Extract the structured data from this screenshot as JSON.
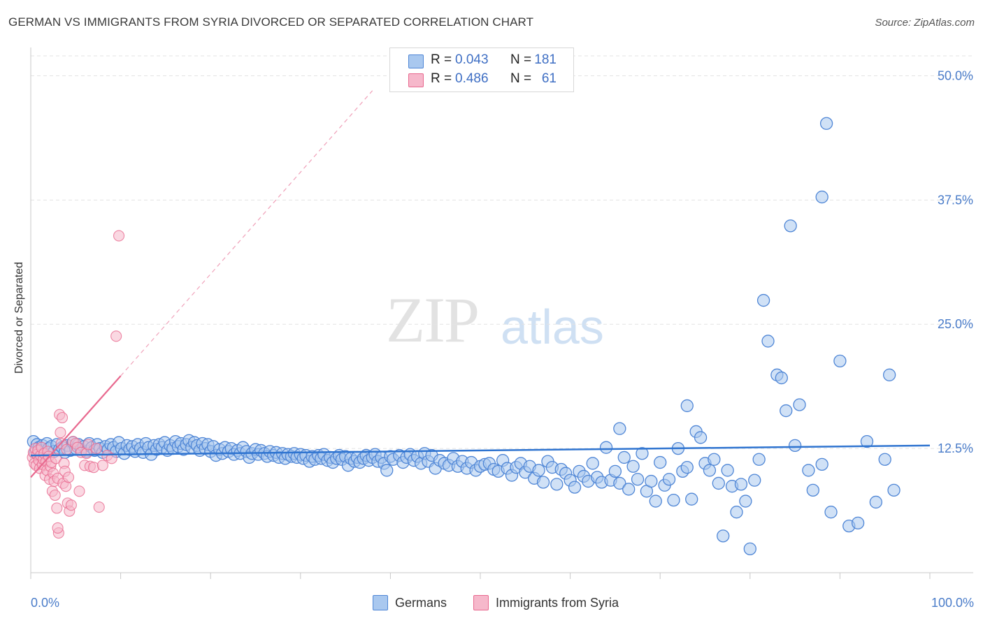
{
  "title": "GERMAN VS IMMIGRANTS FROM SYRIA DIVORCED OR SEPARATED CORRELATION CHART",
  "source": "Source: ZipAtlas.com",
  "watermark": {
    "part1": "ZIP",
    "part2": "atlas"
  },
  "legend": {
    "rows": [
      {
        "r_label": "R =",
        "r_value": "0.043",
        "n_label": "N =",
        "n_value": "181",
        "color": "#a9c8ef"
      },
      {
        "r_label": "R =",
        "r_value": "0.486",
        "n_label": "N =",
        "n_value": "61",
        "color": "#f6b8cb"
      }
    ]
  },
  "bottom_legend": [
    {
      "label": "Germans",
      "color": "#a9c8ef"
    },
    {
      "label": "Immigrants from Syria",
      "color": "#f6b8cb"
    }
  ],
  "chart_data": {
    "type": "scatter",
    "xlabel": "",
    "ylabel": "Divorced or Separated",
    "xlim": [
      0,
      100
    ],
    "ylim": [
      0,
      52
    ],
    "x_tick_labels": [
      "0.0%",
      "100.0%"
    ],
    "y_ticks": [
      12.5,
      25.0,
      37.5,
      50.0
    ],
    "y_tick_labels": [
      "12.5%",
      "25.0%",
      "37.5%",
      "50.0%"
    ],
    "grid": "horizontal dashed",
    "series": [
      {
        "name": "Germans",
        "color": "#4f86d6",
        "fill": "#a9c8ef",
        "trend": {
          "x": [
            0,
            100
          ],
          "y": [
            11.8,
            12.8
          ],
          "style": "solid"
        },
        "points": [
          [
            0.3,
            13.2
          ],
          [
            0.5,
            12.1
          ],
          [
            0.7,
            12.9
          ],
          [
            0.9,
            12.6
          ],
          [
            1.1,
            12.3
          ],
          [
            1.3,
            12.8
          ],
          [
            1.5,
            12.0
          ],
          [
            1.8,
            13.0
          ],
          [
            2.0,
            12.5
          ],
          [
            2.3,
            12.7
          ],
          [
            2.6,
            12.2
          ],
          [
            2.9,
            12.9
          ],
          [
            3.2,
            12.4
          ],
          [
            3.5,
            12.6
          ],
          [
            3.8,
            12.1
          ],
          [
            4.1,
            12.8
          ],
          [
            4.4,
            12.3
          ],
          [
            4.7,
            13.1
          ],
          [
            5.0,
            12.5
          ],
          [
            5.3,
            12.9
          ],
          [
            5.6,
            12.4
          ],
          [
            5.9,
            12.7
          ],
          [
            6.2,
            12.2
          ],
          [
            6.5,
            13.0
          ],
          [
            6.8,
            12.6
          ],
          [
            7.1,
            12.3
          ],
          [
            7.4,
            12.9
          ],
          [
            7.7,
            12.5
          ],
          [
            8.0,
            12.1
          ],
          [
            8.3,
            12.7
          ],
          [
            8.6,
            12.4
          ],
          [
            8.9,
            12.9
          ],
          [
            9.2,
            12.6
          ],
          [
            9.5,
            12.2
          ],
          [
            9.8,
            13.1
          ],
          [
            10.1,
            12.5
          ],
          [
            10.4,
            12.0
          ],
          [
            10.7,
            12.8
          ],
          [
            11.0,
            12.4
          ],
          [
            11.3,
            12.7
          ],
          [
            11.6,
            12.2
          ],
          [
            11.9,
            12.9
          ],
          [
            12.2,
            12.5
          ],
          [
            12.5,
            12.1
          ],
          [
            12.8,
            13.0
          ],
          [
            13.1,
            12.6
          ],
          [
            13.4,
            11.9
          ],
          [
            13.7,
            12.8
          ],
          [
            14.0,
            12.4
          ],
          [
            14.3,
            12.9
          ],
          [
            14.6,
            12.6
          ],
          [
            14.9,
            13.1
          ],
          [
            15.2,
            12.3
          ],
          [
            15.5,
            12.8
          ],
          [
            15.8,
            12.5
          ],
          [
            16.1,
            13.2
          ],
          [
            16.4,
            12.7
          ],
          [
            16.7,
            13.0
          ],
          [
            17.0,
            12.4
          ],
          [
            17.3,
            12.9
          ],
          [
            17.6,
            13.3
          ],
          [
            17.9,
            12.6
          ],
          [
            18.2,
            13.1
          ],
          [
            18.5,
            12.8
          ],
          [
            18.8,
            12.3
          ],
          [
            19.1,
            13.0
          ],
          [
            19.4,
            12.5
          ],
          [
            19.7,
            12.9
          ],
          [
            20.0,
            12.2
          ],
          [
            20.3,
            12.7
          ],
          [
            20.6,
            11.8
          ],
          [
            21.0,
            12.4
          ],
          [
            21.3,
            12.0
          ],
          [
            21.6,
            12.6
          ],
          [
            22.0,
            12.2
          ],
          [
            22.3,
            12.5
          ],
          [
            22.6,
            11.9
          ],
          [
            23.0,
            12.3
          ],
          [
            23.3,
            12.0
          ],
          [
            23.6,
            12.6
          ],
          [
            24.0,
            12.2
          ],
          [
            24.3,
            11.6
          ],
          [
            24.6,
            12.0
          ],
          [
            25.0,
            12.4
          ],
          [
            25.3,
            11.9
          ],
          [
            25.6,
            12.3
          ],
          [
            26.0,
            12.0
          ],
          [
            26.3,
            11.7
          ],
          [
            26.6,
            12.2
          ],
          [
            27.0,
            11.8
          ],
          [
            27.3,
            12.1
          ],
          [
            27.6,
            11.6
          ],
          [
            28.0,
            12.0
          ],
          [
            28.3,
            11.5
          ],
          [
            28.6,
            11.9
          ],
          [
            29.0,
            11.7
          ],
          [
            29.3,
            12.0
          ],
          [
            29.6,
            11.6
          ],
          [
            30.0,
            11.9
          ],
          [
            30.3,
            11.5
          ],
          [
            30.6,
            11.8
          ],
          [
            31.0,
            11.2
          ],
          [
            31.3,
            11.7
          ],
          [
            31.6,
            11.4
          ],
          [
            32.0,
            11.8
          ],
          [
            32.3,
            11.5
          ],
          [
            32.6,
            11.9
          ],
          [
            33.0,
            11.3
          ],
          [
            33.3,
            11.6
          ],
          [
            33.6,
            11.1
          ],
          [
            34.0,
            11.5
          ],
          [
            34.3,
            11.8
          ],
          [
            34.6,
            11.4
          ],
          [
            35.0,
            11.7
          ],
          [
            35.3,
            10.8
          ],
          [
            35.6,
            11.5
          ],
          [
            36.0,
            11.2
          ],
          [
            36.3,
            11.6
          ],
          [
            36.6,
            11.1
          ],
          [
            37.0,
            11.5
          ],
          [
            37.3,
            11.8
          ],
          [
            37.6,
            11.3
          ],
          [
            38.0,
            11.6
          ],
          [
            38.3,
            11.9
          ],
          [
            38.6,
            11.2
          ],
          [
            39.0,
            11.6
          ],
          [
            39.3,
            11.0
          ],
          [
            39.6,
            10.3
          ],
          [
            40.0,
            11.7
          ],
          [
            40.3,
            11.4
          ],
          [
            41.0,
            11.8
          ],
          [
            41.4,
            11.1
          ],
          [
            41.8,
            11.6
          ],
          [
            42.2,
            11.9
          ],
          [
            42.6,
            11.3
          ],
          [
            43.0,
            11.7
          ],
          [
            43.4,
            11.0
          ],
          [
            43.8,
            12.0
          ],
          [
            44.2,
            11.2
          ],
          [
            44.6,
            11.8
          ],
          [
            45.0,
            10.5
          ],
          [
            45.5,
            11.3
          ],
          [
            46.0,
            11.0
          ],
          [
            46.5,
            10.8
          ],
          [
            47.0,
            11.5
          ],
          [
            47.5,
            10.7
          ],
          [
            48.0,
            11.2
          ],
          [
            48.5,
            10.5
          ],
          [
            49.0,
            11.1
          ],
          [
            49.5,
            10.3
          ],
          [
            50.0,
            10.7
          ],
          [
            50.5,
            10.9
          ],
          [
            51.0,
            11.0
          ],
          [
            51.5,
            10.4
          ],
          [
            52.0,
            10.2
          ],
          [
            52.5,
            11.3
          ],
          [
            53.0,
            10.5
          ],
          [
            53.5,
            9.8
          ],
          [
            54.0,
            10.6
          ],
          [
            54.5,
            11.0
          ],
          [
            55.0,
            10.1
          ],
          [
            55.5,
            10.7
          ],
          [
            56.0,
            9.5
          ],
          [
            56.5,
            10.3
          ],
          [
            57.0,
            9.1
          ],
          [
            57.5,
            11.2
          ],
          [
            58.0,
            10.6
          ],
          [
            58.5,
            8.9
          ],
          [
            59.0,
            10.4
          ],
          [
            59.5,
            10.0
          ],
          [
            60.0,
            9.3
          ],
          [
            60.5,
            8.6
          ],
          [
            61.0,
            10.2
          ],
          [
            61.5,
            9.7
          ],
          [
            62.0,
            9.2
          ],
          [
            62.5,
            11.0
          ],
          [
            63.0,
            9.6
          ],
          [
            63.5,
            9.1
          ],
          [
            64.0,
            12.6
          ],
          [
            64.5,
            9.3
          ]
        ]
      },
      {
        "name": "Immigrants from Syria",
        "color": "#e8698f",
        "fill": "#f6b8cb",
        "trend": {
          "x": [
            0,
            10
          ],
          "y": [
            9.6,
            19.8
          ],
          "style": "solid",
          "dashed_extension_to": [
            38,
            48.5
          ]
        },
        "points": [
          [
            0.2,
            11.6
          ],
          [
            0.3,
            12.1
          ],
          [
            0.4,
            11.0
          ],
          [
            0.5,
            12.5
          ],
          [
            0.6,
            10.8
          ],
          [
            0.7,
            11.9
          ],
          [
            0.8,
            12.3
          ],
          [
            0.9,
            11.3
          ],
          [
            1.0,
            10.5
          ],
          [
            1.1,
            11.8
          ],
          [
            1.2,
            12.6
          ],
          [
            1.3,
            10.9
          ],
          [
            1.4,
            11.4
          ],
          [
            1.5,
            12.0
          ],
          [
            1.6,
            9.8
          ],
          [
            1.7,
            11.2
          ],
          [
            1.8,
            10.3
          ],
          [
            1.9,
            12.2
          ],
          [
            2.0,
            11.7
          ],
          [
            2.1,
            9.4
          ],
          [
            2.2,
            10.7
          ],
          [
            2.3,
            11.1
          ],
          [
            2.4,
            8.2
          ],
          [
            2.5,
            10.0
          ],
          [
            2.6,
            9.2
          ],
          [
            2.7,
            7.8
          ],
          [
            2.8,
            11.5
          ],
          [
            2.9,
            6.5
          ],
          [
            3.0,
            9.5
          ],
          [
            3.1,
            4.0
          ],
          [
            3.2,
            15.9
          ],
          [
            3.3,
            14.1
          ],
          [
            3.4,
            13.0
          ],
          [
            3.5,
            15.6
          ],
          [
            3.6,
            9.0
          ],
          [
            3.7,
            11.0
          ],
          [
            3.8,
            10.2
          ],
          [
            3.9,
            8.7
          ],
          [
            4.0,
            12.4
          ],
          [
            4.1,
            7.0
          ],
          [
            4.2,
            9.6
          ],
          [
            4.3,
            6.2
          ],
          [
            4.5,
            6.8
          ],
          [
            4.7,
            13.2
          ],
          [
            5.0,
            13.0
          ],
          [
            5.2,
            12.6
          ],
          [
            5.4,
            8.2
          ],
          [
            5.6,
            12.1
          ],
          [
            6.0,
            10.8
          ],
          [
            6.2,
            12.0
          ],
          [
            6.4,
            12.9
          ],
          [
            6.6,
            10.7
          ],
          [
            7.0,
            10.6
          ],
          [
            7.3,
            12.5
          ],
          [
            7.6,
            6.6
          ],
          [
            8.0,
            10.8
          ],
          [
            8.5,
            11.8
          ],
          [
            9.0,
            11.5
          ],
          [
            9.5,
            23.8
          ],
          [
            9.8,
            33.9
          ],
          [
            3.0,
            4.5
          ]
        ]
      }
    ],
    "extra_german_points": [
      [
        65.0,
        10.2
      ],
      [
        65.5,
        9.0
      ],
      [
        66.0,
        11.6
      ],
      [
        66.5,
        8.4
      ],
      [
        67.0,
        10.7
      ],
      [
        67.5,
        9.4
      ],
      [
        68.0,
        12.0
      ],
      [
        68.5,
        8.2
      ],
      [
        69.0,
        9.2
      ],
      [
        69.5,
        7.2
      ],
      [
        70.0,
        11.1
      ],
      [
        70.5,
        8.8
      ],
      [
        71.0,
        9.4
      ],
      [
        71.5,
        7.3
      ],
      [
        72.0,
        12.5
      ],
      [
        72.5,
        10.2
      ],
      [
        73.0,
        10.6
      ],
      [
        73.5,
        7.4
      ],
      [
        74.0,
        14.2
      ],
      [
        74.5,
        13.6
      ],
      [
        75.0,
        11.0
      ],
      [
        75.5,
        10.3
      ],
      [
        76.0,
        11.4
      ],
      [
        76.5,
        9.0
      ],
      [
        77.0,
        3.7
      ],
      [
        77.5,
        10.3
      ],
      [
        78.0,
        8.7
      ],
      [
        78.5,
        6.1
      ],
      [
        79.0,
        8.9
      ],
      [
        79.5,
        7.2
      ],
      [
        80.0,
        2.4
      ],
      [
        80.5,
        9.3
      ],
      [
        81.0,
        11.4
      ],
      [
        81.5,
        27.4
      ],
      [
        82.0,
        23.3
      ],
      [
        83.0,
        19.9
      ],
      [
        83.5,
        19.6
      ],
      [
        84.0,
        16.3
      ],
      [
        84.5,
        34.9
      ],
      [
        85.0,
        12.8
      ],
      [
        85.5,
        16.9
      ],
      [
        86.5,
        10.3
      ],
      [
        87.0,
        8.3
      ],
      [
        88.0,
        37.8
      ],
      [
        88.5,
        45.2
      ],
      [
        89.0,
        6.1
      ],
      [
        90.0,
        21.3
      ],
      [
        91.0,
        4.7
      ],
      [
        92.0,
        5.0
      ],
      [
        93.0,
        13.2
      ],
      [
        94.0,
        7.1
      ],
      [
        95.0,
        11.4
      ],
      [
        95.5,
        19.9
      ],
      [
        96.0,
        8.3
      ],
      [
        88.0,
        10.9
      ],
      [
        73.0,
        16.8
      ],
      [
        65.5,
        14.5
      ]
    ]
  }
}
